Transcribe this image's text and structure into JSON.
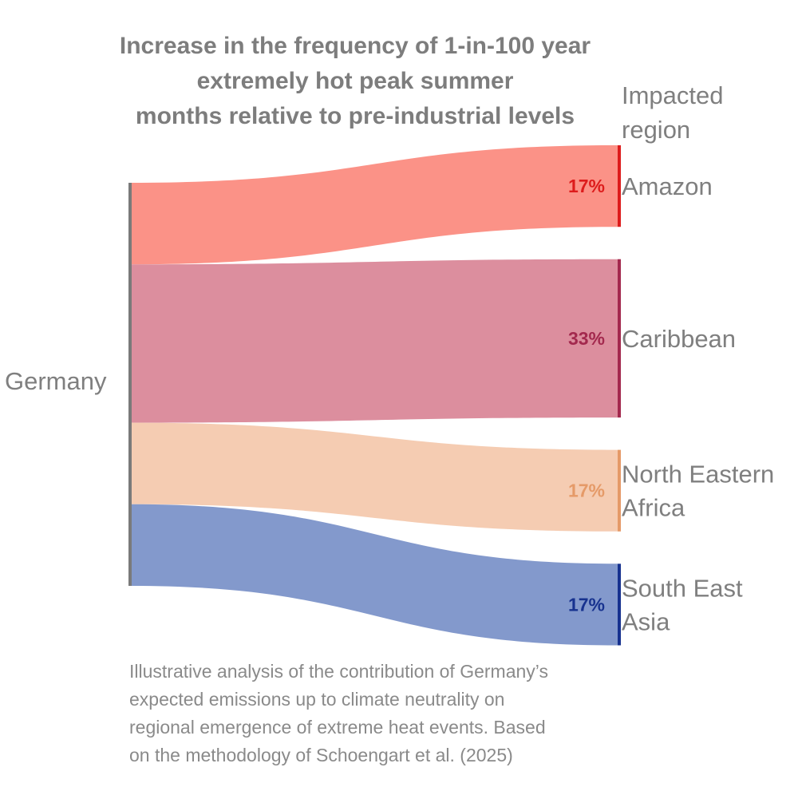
{
  "chart_data": {
    "type": "sankey",
    "title_lines": [
      "Increase in the frequency of 1-in-100 year",
      "extremely hot peak summer",
      "months relative to pre-industrial levels"
    ],
    "source": "Germany",
    "targets_header": [
      "Impacted",
      "region"
    ],
    "flows": [
      {
        "target_lines": [
          "Amazon"
        ],
        "value": 17,
        "label": "17%",
        "color": "#fb9287",
        "accent": "#dd1c1c"
      },
      {
        "target_lines": [
          "Caribbean"
        ],
        "value": 33,
        "label": "33%",
        "color": "#dc8e9e",
        "accent": "#a3294e"
      },
      {
        "target_lines": [
          "North Eastern",
          "Africa"
        ],
        "value": 17,
        "label": "17%",
        "color": "#f5ccb2",
        "accent": "#e59a68"
      },
      {
        "target_lines": [
          "South East",
          "Asia"
        ],
        "value": 17,
        "label": "17%",
        "color": "#8399cc",
        "accent": "#17328f"
      }
    ],
    "source_bar_color": "#7a7a7a"
  },
  "caption_lines": [
    "Illustrative analysis of the contribution of Germany’s",
    "expected emissions up to climate neutrality on",
    "regional emergence of extreme heat events. Based",
    "on the methodology of Schoengart et al. (2025)"
  ]
}
